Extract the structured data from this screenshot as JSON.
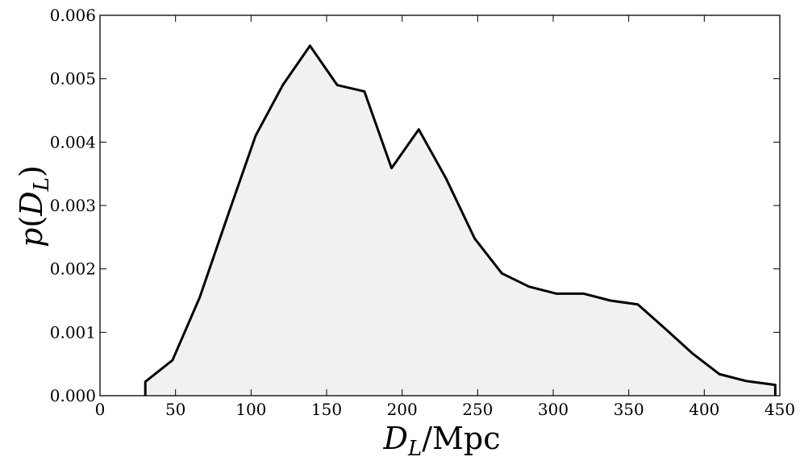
{
  "chart_data": {
    "type": "area",
    "title": "",
    "xlabel": "D_L/Mpc",
    "ylabel": "p(D_L)",
    "xlim": [
      0,
      450
    ],
    "ylim": [
      0,
      0.006
    ],
    "x_ticks": [
      "0",
      "50",
      "100",
      "150",
      "200",
      "250",
      "300",
      "350",
      "400",
      "450"
    ],
    "y_ticks": [
      "0.000",
      "0.001",
      "0.002",
      "0.003",
      "0.004",
      "0.005",
      "0.006"
    ],
    "grid": false,
    "legend": "none",
    "line_color": "#000000",
    "fill_color": "#f1f1f1",
    "series": [
      {
        "x": [
          30,
          48,
          66,
          84,
          103,
          121,
          139,
          157,
          175,
          193,
          211,
          229,
          248,
          266,
          284,
          302,
          320,
          338,
          356,
          374,
          392,
          410,
          428,
          447
        ],
        "y": [
          0.00022,
          0.00056,
          0.00155,
          0.0028,
          0.0041,
          0.0049,
          0.00552,
          0.0049,
          0.0048,
          0.00359,
          0.0042,
          0.00343,
          0.00248,
          0.00193,
          0.00172,
          0.00161,
          0.00161,
          0.0015,
          0.00144,
          0.00106,
          0.00067,
          0.00034,
          0.00023,
          0.00017
        ]
      }
    ]
  }
}
